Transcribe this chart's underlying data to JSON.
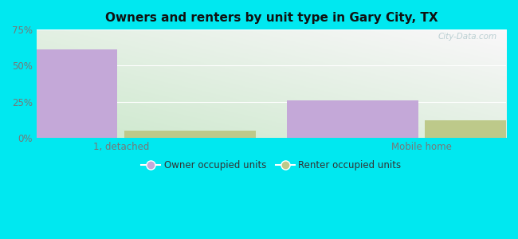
{
  "title": "Owners and renters by unit type in Gary City, TX",
  "categories": [
    "1, detached",
    "Mobile home"
  ],
  "owner_values": [
    61,
    26
  ],
  "renter_values": [
    5,
    12
  ],
  "owner_color": "#c4a8d8",
  "renter_color": "#bdc98a",
  "ylim": [
    0,
    75
  ],
  "yticks": [
    0,
    25,
    50,
    75
  ],
  "ytick_labels": [
    "0%",
    "25%",
    "50%",
    "75%"
  ],
  "legend_owner": "Owner occupied units",
  "legend_renter": "Renter occupied units",
  "background_outer": "#00e8f0",
  "watermark": "City-Data.com",
  "bar_width": 0.28,
  "x_positions": [
    0.18,
    0.82
  ],
  "xlim": [
    0,
    1
  ]
}
